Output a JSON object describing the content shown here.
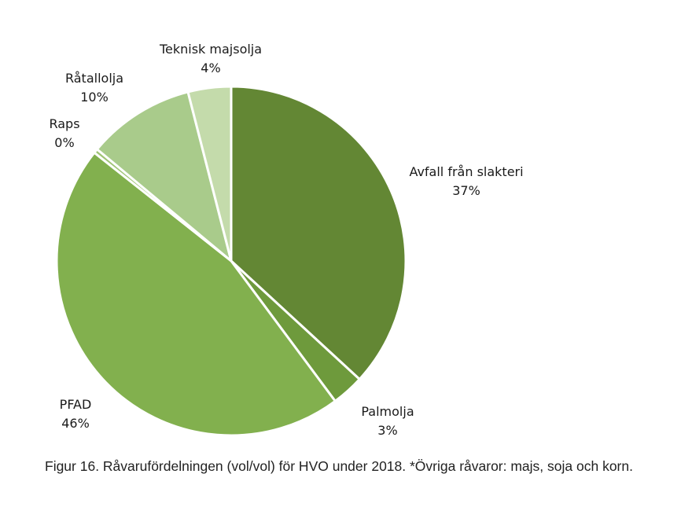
{
  "chart_data": {
    "type": "pie",
    "start_angle_deg": 0,
    "direction": "clockwise",
    "legend": "none",
    "slices": [
      {
        "name": "Avfall från slakteri",
        "value": 37,
        "label": "37%",
        "color": "#638734"
      },
      {
        "name": "Palmolja",
        "value": 3,
        "label": "3%",
        "color": "#6e9a3c"
      },
      {
        "name": "PFAD",
        "value": 46,
        "label": "46%",
        "color": "#82b04e"
      },
      {
        "name": "Raps",
        "value": 0.4,
        "label": "0%",
        "color": "#9fc475"
      },
      {
        "name": "Råtallolja",
        "value": 10,
        "label": "10%",
        "color": "#a9cb8b"
      },
      {
        "name": "Teknisk majsolja",
        "value": 4,
        "label": "4%",
        "color": "#c4dbab"
      }
    ]
  },
  "caption": "Figur 16. Råvarufördelningen (vol/vol) för HVO under 2018. *Övriga råvaror: majs, soja och korn."
}
